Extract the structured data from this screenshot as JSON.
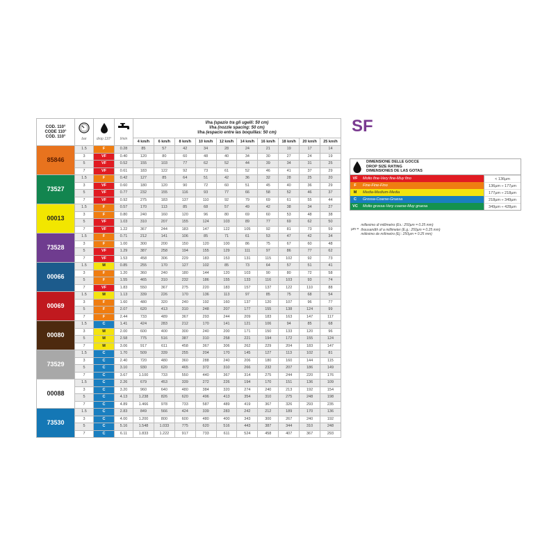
{
  "title": "SF",
  "header": {
    "code": [
      "COD. 110°",
      "CODE 110°",
      "CÓD. 110°"
    ],
    "units": {
      "bar": "bar",
      "drop": "drop 110°",
      "lmin": "l/min"
    },
    "icons": [
      "pressure-gauge-icon",
      "drop-icon",
      "tap-icon"
    ],
    "lha_unit": "l/ha",
    "lha_lines": [
      "(spazio tra gli ugelli: 50 cm)",
      "(nozzle spacing: 50 cm)",
      "(espacio entre las boquillas: 50 cm)"
    ],
    "speeds": [
      "4 km/h",
      "6 km/h",
      "8 km/h",
      "10 km/h",
      "12 km/h",
      "14 km/h",
      "16 km/h",
      "18 km/h",
      "20 km/h",
      "25 km/h"
    ]
  },
  "drop_colors": {
    "VF": "#e11b22",
    "F": "#ef7d11",
    "M": "#f4e40f",
    "C": "#1a7fc0",
    "VC": "#14924f"
  },
  "groups": [
    {
      "code": "85846",
      "color": "#e8731e",
      "text": "#5a1e00",
      "rows": [
        [
          "1.5",
          "F",
          "0.28",
          [
            "85",
            "57",
            "42",
            "34",
            "28",
            "24",
            "21",
            "19",
            "17",
            "14"
          ]
        ],
        [
          "3",
          "VF",
          "0.40",
          [
            "120",
            "80",
            "60",
            "48",
            "40",
            "34",
            "30",
            "27",
            "24",
            "19"
          ]
        ],
        [
          "5",
          "VF",
          "0.52",
          [
            "155",
            "103",
            "77",
            "62",
            "52",
            "44",
            "39",
            "34",
            "31",
            "25"
          ]
        ],
        [
          "7",
          "VF",
          "0.61",
          [
            "183",
            "122",
            "92",
            "73",
            "61",
            "52",
            "46",
            "41",
            "37",
            "29"
          ]
        ]
      ]
    },
    {
      "code": "73527",
      "color": "#12854f",
      "text": "#fff",
      "rows": [
        [
          "1.5",
          "F",
          "0.42",
          [
            "127",
            "85",
            "64",
            "51",
            "42",
            "36",
            "32",
            "28",
            "25",
            "20"
          ]
        ],
        [
          "3",
          "VF",
          "0.60",
          [
            "180",
            "120",
            "90",
            "72",
            "60",
            "51",
            "45",
            "40",
            "36",
            "29"
          ]
        ],
        [
          "5",
          "VF",
          "0.77",
          [
            "232",
            "155",
            "116",
            "93",
            "77",
            "66",
            "58",
            "52",
            "46",
            "37"
          ]
        ],
        [
          "7",
          "VF",
          "0.92",
          [
            "275",
            "183",
            "137",
            "110",
            "92",
            "79",
            "69",
            "61",
            "55",
            "44"
          ]
        ]
      ]
    },
    {
      "code": "00013",
      "color": "#f2e600",
      "text": "#222",
      "rows": [
        [
          "1.5",
          "F",
          "0.57",
          [
            "170",
            "113",
            "85",
            "68",
            "57",
            "49",
            "42",
            "38",
            "34",
            "27"
          ]
        ],
        [
          "3",
          "F",
          "0.80",
          [
            "240",
            "160",
            "120",
            "96",
            "80",
            "69",
            "60",
            "53",
            "48",
            "38"
          ]
        ],
        [
          "5",
          "VF",
          "1.03",
          [
            "310",
            "207",
            "155",
            "124",
            "103",
            "89",
            "77",
            "69",
            "62",
            "50"
          ]
        ],
        [
          "7",
          "VF",
          "1.22",
          [
            "367",
            "244",
            "183",
            "147",
            "122",
            "105",
            "92",
            "81",
            "73",
            "59"
          ]
        ]
      ]
    },
    {
      "code": "73528",
      "color": "#6f3c8f",
      "text": "#fff",
      "rows": [
        [
          "1.5",
          "F",
          "0.71",
          [
            "212",
            "141",
            "106",
            "85",
            "71",
            "61",
            "53",
            "47",
            "42",
            "34"
          ]
        ],
        [
          "3",
          "F",
          "1.00",
          [
            "300",
            "200",
            "150",
            "120",
            "100",
            "86",
            "75",
            "67",
            "60",
            "48"
          ]
        ],
        [
          "5",
          "VF",
          "1.29",
          [
            "387",
            "258",
            "194",
            "155",
            "129",
            "111",
            "97",
            "86",
            "77",
            "62"
          ]
        ],
        [
          "7",
          "VF",
          "1.53",
          [
            "458",
            "306",
            "229",
            "183",
            "153",
            "131",
            "115",
            "102",
            "92",
            "73"
          ]
        ]
      ]
    },
    {
      "code": "00066",
      "color": "#1c5b8c",
      "text": "#fff",
      "rows": [
        [
          "1.5",
          "M",
          "0.85",
          [
            "255",
            "170",
            "127",
            "102",
            "85",
            "73",
            "64",
            "57",
            "51",
            "41"
          ]
        ],
        [
          "3",
          "F",
          "1.20",
          [
            "360",
            "240",
            "180",
            "144",
            "120",
            "103",
            "90",
            "80",
            "72",
            "58"
          ]
        ],
        [
          "5",
          "F",
          "1.55",
          [
            "465",
            "310",
            "232",
            "186",
            "155",
            "133",
            "116",
            "103",
            "93",
            "74"
          ]
        ],
        [
          "7",
          "VF",
          "1.83",
          [
            "550",
            "367",
            "275",
            "220",
            "183",
            "157",
            "137",
            "122",
            "110",
            "88"
          ]
        ]
      ]
    },
    {
      "code": "00069",
      "color": "#c0191f",
      "text": "#fff",
      "rows": [
        [
          "1.5",
          "M",
          "1.13",
          [
            "339",
            "226",
            "170",
            "136",
            "113",
            "97",
            "85",
            "75",
            "68",
            "54"
          ]
        ],
        [
          "3",
          "F",
          "1.60",
          [
            "480",
            "320",
            "240",
            "192",
            "160",
            "137",
            "120",
            "107",
            "96",
            "77"
          ]
        ],
        [
          "5",
          "F",
          "2.07",
          [
            "620",
            "413",
            "310",
            "248",
            "207",
            "177",
            "155",
            "138",
            "124",
            "99"
          ]
        ],
        [
          "7",
          "F",
          "2.44",
          [
            "733",
            "489",
            "367",
            "293",
            "244",
            "209",
            "183",
            "163",
            "147",
            "117"
          ]
        ]
      ]
    },
    {
      "code": "00080",
      "color": "#4d2a0f",
      "text": "#fff",
      "rows": [
        [
          "1.5",
          "C",
          "1.41",
          [
            "424",
            "283",
            "212",
            "170",
            "141",
            "121",
            "106",
            "94",
            "85",
            "68"
          ]
        ],
        [
          "3",
          "M",
          "2.00",
          [
            "600",
            "400",
            "300",
            "240",
            "200",
            "171",
            "150",
            "133",
            "120",
            "96"
          ]
        ],
        [
          "5",
          "M",
          "2.58",
          [
            "775",
            "516",
            "387",
            "310",
            "258",
            "221",
            "194",
            "172",
            "155",
            "124"
          ]
        ],
        [
          "7",
          "M",
          "3.06",
          [
            "917",
            "611",
            "458",
            "367",
            "306",
            "262",
            "229",
            "204",
            "183",
            "147"
          ]
        ]
      ]
    },
    {
      "code": "73529",
      "color": "#a8a8a8",
      "text": "#fff",
      "rows": [
        [
          "1.5",
          "C",
          "1.70",
          [
            "509",
            "339",
            "255",
            "204",
            "170",
            "145",
            "127",
            "113",
            "102",
            "81"
          ]
        ],
        [
          "3",
          "C",
          "2.40",
          [
            "720",
            "480",
            "360",
            "288",
            "240",
            "206",
            "180",
            "160",
            "144",
            "115"
          ]
        ],
        [
          "5",
          "C",
          "3.10",
          [
            "930",
            "620",
            "465",
            "372",
            "310",
            "266",
            "232",
            "207",
            "186",
            "149"
          ]
        ],
        [
          "7",
          "C",
          "3.67",
          [
            "1.100",
            "733",
            "550",
            "440",
            "367",
            "314",
            "275",
            "244",
            "220",
            "176"
          ]
        ]
      ]
    },
    {
      "code": "00088",
      "color": "#ffffff",
      "text": "#222",
      "rows": [
        [
          "1.5",
          "C",
          "2.26",
          [
            "679",
            "453",
            "339",
            "272",
            "226",
            "194",
            "170",
            "151",
            "136",
            "109"
          ]
        ],
        [
          "3",
          "C",
          "3.20",
          [
            "960",
            "640",
            "480",
            "384",
            "320",
            "274",
            "240",
            "213",
            "192",
            "154"
          ]
        ],
        [
          "5",
          "C",
          "4.13",
          [
            "1.238",
            "826",
            "620",
            "496",
            "413",
            "354",
            "310",
            "275",
            "248",
            "198"
          ]
        ],
        [
          "7",
          "C",
          "4.89",
          [
            "1.466",
            "978",
            "733",
            "587",
            "489",
            "419",
            "367",
            "326",
            "293",
            "235"
          ]
        ]
      ]
    },
    {
      "code": "73530",
      "color": "#1477b5",
      "text": "#fff",
      "rows": [
        [
          "1.5",
          "C",
          "2.83",
          [
            "849",
            "566",
            "424",
            "339",
            "283",
            "242",
            "212",
            "189",
            "170",
            "136"
          ]
        ],
        [
          "3",
          "C",
          "4.00",
          [
            "1.200",
            "800",
            "600",
            "480",
            "400",
            "343",
            "300",
            "267",
            "240",
            "192"
          ]
        ],
        [
          "5",
          "C",
          "5.16",
          [
            "1.548",
            "1.033",
            "775",
            "620",
            "516",
            "443",
            "387",
            "344",
            "310",
            "248"
          ]
        ],
        [
          "7",
          "C",
          "6.11",
          [
            "1.833",
            "1.222",
            "917",
            "733",
            "611",
            "524",
            "458",
            "407",
            "367",
            "293"
          ]
        ]
      ]
    }
  ],
  "legend": {
    "title": [
      "DIMENSIONE DELLE GOCCE",
      "DROP SIZE RATING",
      "DIMENSIONES DE LAS GOTAS"
    ],
    "rows": [
      {
        "code": "VF",
        "label": "Molto fine-Very fine-Muy fino",
        "range": "< 136µm"
      },
      {
        "code": "F",
        "label": "Fine-Fine-Fino",
        "range": "136µm ÷ 177µm"
      },
      {
        "code": "M",
        "label": "Media-Medium-Media",
        "range": "177µm ÷ 218µm"
      },
      {
        "code": "C",
        "label": "Grossa-Coarse-Gruesa",
        "range": "218µm ÷ 349µm"
      },
      {
        "code": "VC",
        "label": "Molto grossa-Very coarse-Muy gruesa",
        "range": "349µm ÷ 428µm"
      }
    ]
  },
  "footnote": {
    "symbol": "µm =",
    "lines": [
      "millesimo di millimetro (Es.: 250µm = 0.25 mm)",
      "thousandth of a millimeter (E.g.: 250µm = 0.25 mm)",
      "milésimo de milímetro (Ej.: 250µm = 0.25 mm)"
    ]
  }
}
